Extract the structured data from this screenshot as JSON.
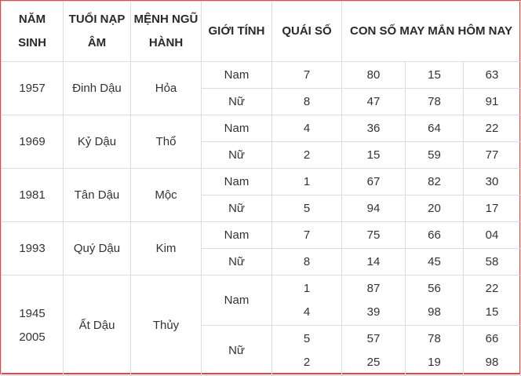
{
  "colors": {
    "border_accent": "#e3474d",
    "grid": "#dcdcdc",
    "text": "#333333"
  },
  "header": {
    "nam_sinh": [
      "NĂM",
      "SINH"
    ],
    "tuoi": [
      "TUỔI NẠP",
      "ÂM"
    ],
    "menh": [
      "MỆNH NGŨ",
      "HÀNH"
    ],
    "gioi_tinh": "GIỚI TÍNH",
    "quai_so": "QUÁI SỐ",
    "con_so": "CON SỐ MAY MẮN HÔM NAY"
  },
  "groups": [
    {
      "years": [
        "1957"
      ],
      "tuoi": "Đinh Dậu",
      "menh": "Hỏa",
      "rows": [
        {
          "gender": "Nam",
          "quai": [
            "7"
          ],
          "nums": [
            [
              "80"
            ],
            [
              "15"
            ],
            [
              "63"
            ]
          ]
        },
        {
          "gender": "Nữ",
          "quai": [
            "8"
          ],
          "nums": [
            [
              "47"
            ],
            [
              "78"
            ],
            [
              "91"
            ]
          ]
        }
      ]
    },
    {
      "years": [
        "1969"
      ],
      "tuoi": "Kỷ Dậu",
      "menh": "Thổ",
      "rows": [
        {
          "gender": "Nam",
          "quai": [
            "4"
          ],
          "nums": [
            [
              "36"
            ],
            [
              "64"
            ],
            [
              "22"
            ]
          ]
        },
        {
          "gender": "Nữ",
          "quai": [
            "2"
          ],
          "nums": [
            [
              "15"
            ],
            [
              "59"
            ],
            [
              "77"
            ]
          ]
        }
      ]
    },
    {
      "years": [
        "1981"
      ],
      "tuoi": "Tân Dậu",
      "menh": "Mộc",
      "rows": [
        {
          "gender": "Nam",
          "quai": [
            "1"
          ],
          "nums": [
            [
              "67"
            ],
            [
              "82"
            ],
            [
              "30"
            ]
          ]
        },
        {
          "gender": "Nữ",
          "quai": [
            "5"
          ],
          "nums": [
            [
              "94"
            ],
            [
              "20"
            ],
            [
              "17"
            ]
          ]
        }
      ]
    },
    {
      "years": [
        "1993"
      ],
      "tuoi": "Quý Dậu",
      "menh": "Kim",
      "rows": [
        {
          "gender": "Nam",
          "quai": [
            "7"
          ],
          "nums": [
            [
              "75"
            ],
            [
              "66"
            ],
            [
              "04"
            ]
          ]
        },
        {
          "gender": "Nữ",
          "quai": [
            "8"
          ],
          "nums": [
            [
              "14"
            ],
            [
              "45"
            ],
            [
              "58"
            ]
          ]
        }
      ]
    },
    {
      "years": [
        "1945",
        "2005"
      ],
      "tuoi": "Ất Dậu",
      "menh": "Thủy",
      "rows": [
        {
          "gender": "Nam",
          "quai": [
            "1",
            "4"
          ],
          "nums": [
            [
              "87",
              "39"
            ],
            [
              "56",
              "98"
            ],
            [
              "22",
              "15"
            ]
          ]
        },
        {
          "gender": "Nữ",
          "quai": [
            "5",
            "2"
          ],
          "nums": [
            [
              "57",
              "25"
            ],
            [
              "78",
              "19"
            ],
            [
              "66",
              "98"
            ]
          ]
        }
      ]
    }
  ]
}
